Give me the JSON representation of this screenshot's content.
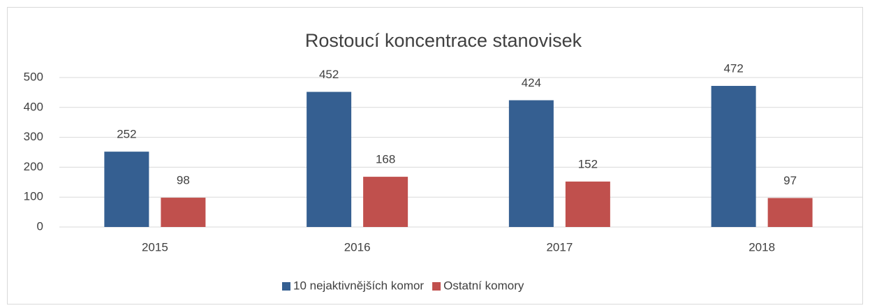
{
  "chart_data": {
    "type": "bar",
    "title": "Rostoucí koncentrace stanovisek",
    "categories": [
      "2015",
      "2016",
      "2017",
      "2018"
    ],
    "series": [
      {
        "name": "10 nejaktivnějších komor",
        "color": "#355f91",
        "values": [
          252,
          452,
          424,
          472
        ]
      },
      {
        "name": "Ostatní komory",
        "color": "#c0504d",
        "values": [
          98,
          168,
          152,
          97
        ]
      }
    ],
    "ylim": [
      0,
      500
    ],
    "yticks": [
      0,
      100,
      200,
      300,
      400,
      500
    ],
    "grid": true,
    "legend": "bottom"
  }
}
